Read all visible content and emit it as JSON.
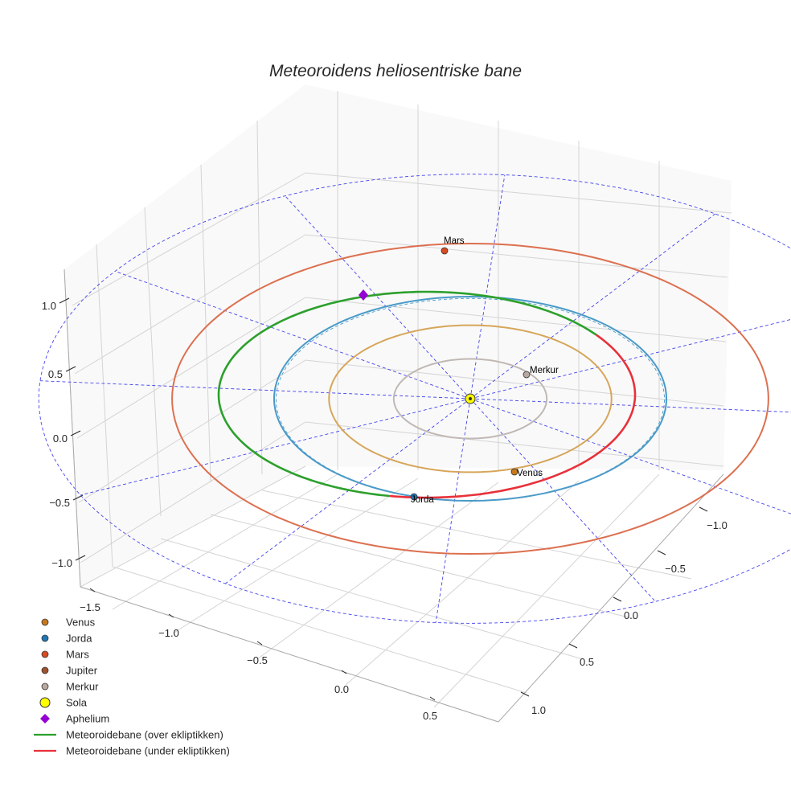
{
  "chart_data": {
    "type": "line",
    "title": "Meteoroidens heliosentriske bane",
    "view": "3d",
    "xlim": [
      -1.5,
      1.0
    ],
    "ylim": [
      -1.0,
      1.0
    ],
    "zlim": [
      -1.0,
      1.0
    ],
    "x_ticks": [
      "−1.5",
      "−1.0",
      "−0.5",
      "0.0",
      "0.5"
    ],
    "y_ticks": [
      "−1.0",
      "−0.5",
      "0.0",
      "0.5",
      "1.0"
    ],
    "z_ticks": [
      "1.0",
      "0.5",
      "0.0",
      "−0.5",
      "−1.0"
    ],
    "grid": true,
    "legend_position": "lower-left",
    "orbits": [
      {
        "name": "Merkur",
        "radius": 0.39,
        "color": "#c0b8b4"
      },
      {
        "name": "Venus",
        "radius": 0.72,
        "color": "#d6a65a"
      },
      {
        "name": "Jorda",
        "radius": 1.0,
        "color": "#4a9ac8"
      },
      {
        "name": "Mars",
        "radius": 1.52,
        "color": "#dc7050"
      }
    ],
    "reference_circle_radius": 2.2,
    "meteoroid_orbit": {
      "series": [
        {
          "name": "Meteoroidebane (over ekliptikken)",
          "color": "#2ca02c"
        },
        {
          "name": "Meteoroidebane (under ekliptikken)",
          "color": "#e8313a"
        }
      ]
    },
    "points": [
      {
        "name": "Mars",
        "label": "Mars",
        "x": 0.48,
        "y": -1.44,
        "z": 0.0,
        "color": "#d84c20"
      },
      {
        "name": "Merkur",
        "label": "Merkur",
        "x": 0.25,
        "y": 0.3,
        "z": 0.0,
        "color": "#b8a8a0"
      },
      {
        "name": "Venus",
        "label": "Venus",
        "x": -0.68,
        "y": 0.25,
        "z": 0.0,
        "color": "#c8781c"
      },
      {
        "name": "Jorda",
        "label": "Jorda",
        "x": -0.95,
        "y": -0.3,
        "z": 0.0,
        "color": "#1f77b4"
      },
      {
        "name": "Sola",
        "label": "",
        "x": 0.0,
        "y": 0.0,
        "z": 0.0,
        "color": "#ffff00"
      },
      {
        "name": "Aphelium",
        "label": "",
        "x": 0.55,
        "y": -1.05,
        "z": 0.12,
        "color": "#9400d3"
      }
    ],
    "legend": [
      {
        "label": "Venus",
        "marker": "dot",
        "color": "#c8781c"
      },
      {
        "label": "Jorda",
        "marker": "dot",
        "color": "#1f77b4"
      },
      {
        "label": "Mars",
        "marker": "dot",
        "color": "#d84c20"
      },
      {
        "label": "Jupiter",
        "marker": "dot",
        "color": "#a0522d"
      },
      {
        "label": "Merkur",
        "marker": "dot",
        "color": "#b8a8a0"
      },
      {
        "label": "Sola",
        "marker": "sun",
        "color": "#ffff00"
      },
      {
        "label": "Aphelium",
        "marker": "diamond",
        "color": "#9400d3"
      },
      {
        "label": "Meteoroidebane (over ekliptikken)",
        "marker": "line",
        "color": "#2ca02c"
      },
      {
        "label": "Meteoroidebane (under ekliptikken)",
        "marker": "line",
        "color": "#e8313a"
      }
    ]
  }
}
